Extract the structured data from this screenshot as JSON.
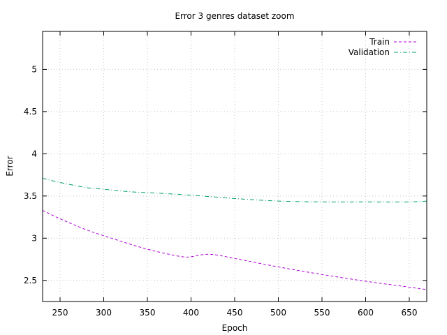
{
  "chart_data": {
    "type": "line",
    "title": "Error 3 genres dataset zoom",
    "xlabel": "Epoch",
    "ylabel": "Error",
    "xlim": [
      230,
      670
    ],
    "ylim": [
      2.25,
      5.45
    ],
    "x_ticks": [
      250,
      300,
      350,
      400,
      450,
      500,
      550,
      600,
      650
    ],
    "y_ticks": [
      2.5,
      3,
      3.5,
      4,
      4.5,
      5
    ],
    "grid": true,
    "legend_position": "top-right",
    "series": [
      {
        "name": "Train",
        "color": "#b000d8",
        "dash": "dashed",
        "x": [
          230,
          250,
          280,
          300,
          330,
          350,
          370,
          390,
          400,
          410,
          420,
          430,
          450,
          500,
          550,
          600,
          650,
          670
        ],
        "y": [
          3.33,
          3.23,
          3.1,
          3.03,
          2.93,
          2.87,
          2.82,
          2.78,
          2.78,
          2.8,
          2.81,
          2.8,
          2.76,
          2.66,
          2.57,
          2.49,
          2.42,
          2.39
        ]
      },
      {
        "name": "Validation",
        "color": "#009e73",
        "dash": "dashdot",
        "x": [
          230,
          250,
          280,
          300,
          330,
          350,
          400,
          450,
          500,
          550,
          600,
          650,
          670
        ],
        "y": [
          3.71,
          3.66,
          3.6,
          3.58,
          3.55,
          3.54,
          3.51,
          3.47,
          3.44,
          3.43,
          3.43,
          3.43,
          3.44
        ]
      }
    ]
  }
}
